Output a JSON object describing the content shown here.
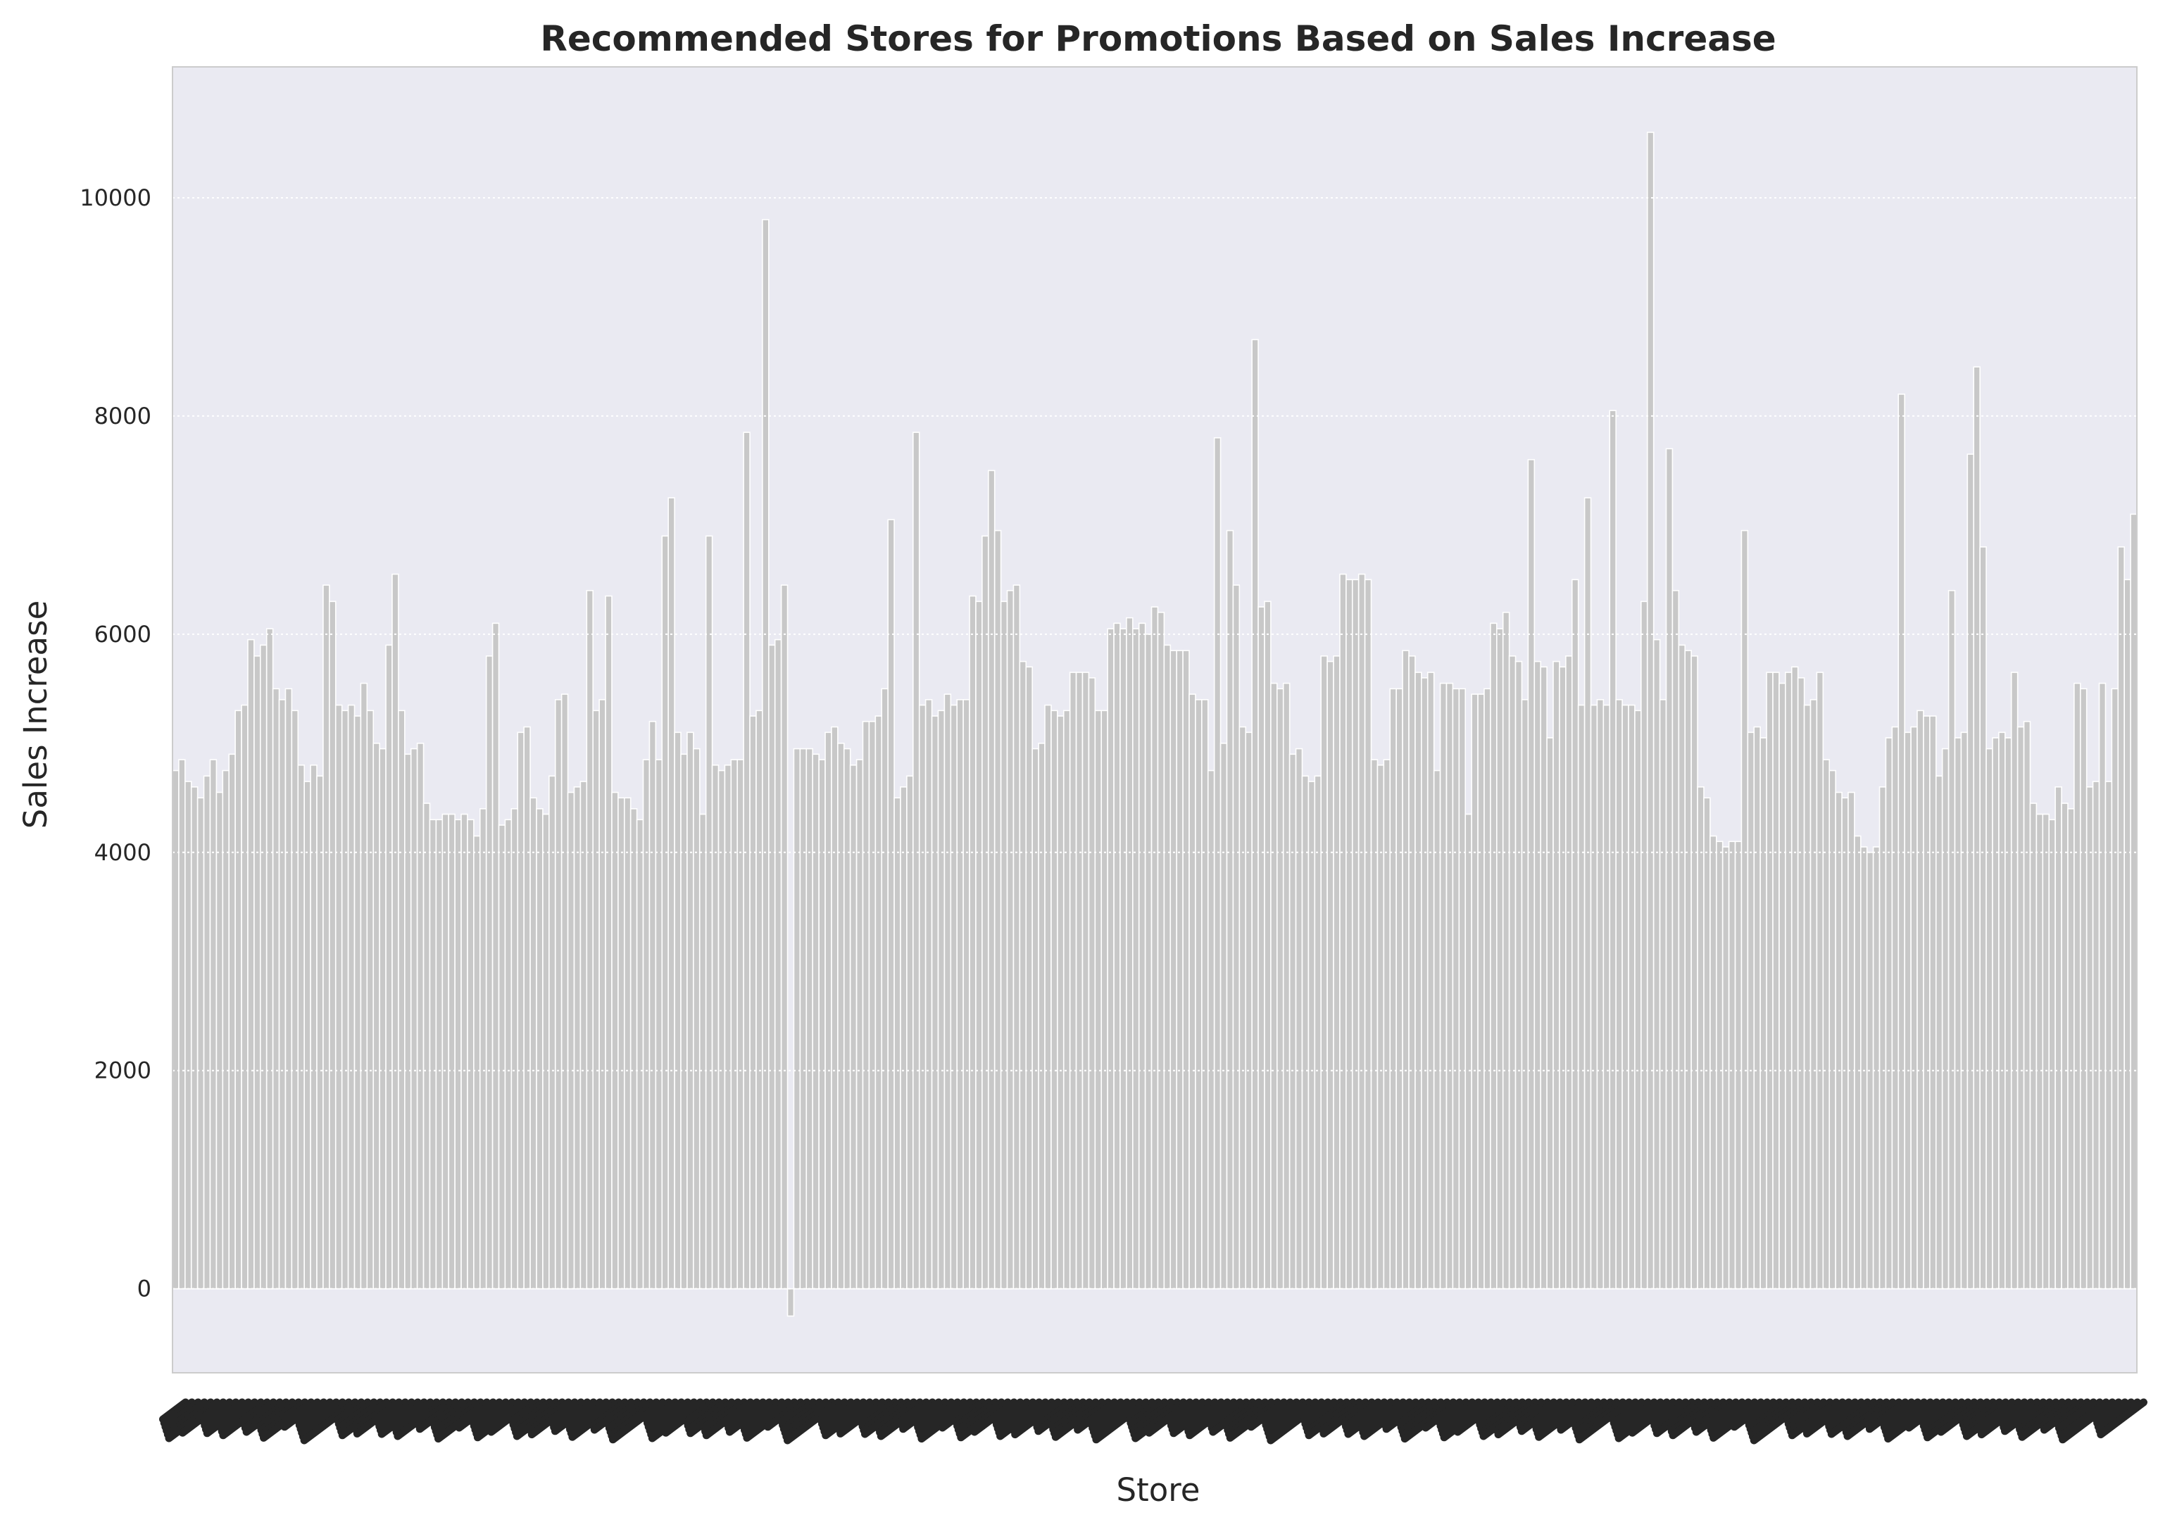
{
  "chart_data": {
    "type": "bar",
    "title": "Recommended Stores for Promotions Based on Sales Increase",
    "xlabel": "Store",
    "ylabel": "Sales Increase",
    "y_ticks": [
      0,
      2000,
      4000,
      6000,
      8000,
      10000
    ],
    "ylim": [
      -770,
      11200
    ],
    "grid": true,
    "legend": "none",
    "colors": {
      "plot_background": "#eaeaf2",
      "bar_fill": "#c8c8c8",
      "bar_edge": "#ffffff",
      "gridline": "#ffffff",
      "text": "#262626",
      "frame": "#cccccc"
    },
    "categories_note": "x tick labels are illegible (overlapping dark rotated labels)",
    "values": [
      4750,
      4850,
      4650,
      4600,
      4500,
      4700,
      4850,
      4550,
      4750,
      4900,
      5300,
      5350,
      5950,
      5800,
      5900,
      6050,
      5500,
      5400,
      5500,
      5300,
      4800,
      4650,
      4800,
      4700,
      6450,
      6300,
      5350,
      5300,
      5350,
      5250,
      5550,
      5300,
      5000,
      4950,
      5900,
      6550,
      5300,
      4900,
      4950,
      5000,
      4450,
      4300,
      4300,
      4350,
      4350,
      4300,
      4350,
      4300,
      4150,
      4400,
      5800,
      6100,
      4250,
      4300,
      4400,
      5100,
      5150,
      4500,
      4400,
      4350,
      4700,
      5400,
      5450,
      4550,
      4600,
      4650,
      6400,
      5300,
      5400,
      6350,
      4550,
      4500,
      4500,
      4400,
      4300,
      4850,
      5200,
      4850,
      6900,
      7250,
      5100,
      4900,
      5100,
      4950,
      4350,
      6900,
      4800,
      4750,
      4800,
      4850,
      4850,
      7850,
      5250,
      5300,
      9800,
      5900,
      5950,
      6450,
      -250,
      4950,
      4950,
      4950,
      4900,
      4850,
      5100,
      5150,
      5000,
      4950,
      4800,
      4850,
      5200,
      5200,
      5250,
      5500,
      7050,
      4500,
      4600,
      4700,
      7850,
      5350,
      5400,
      5250,
      5300,
      5450,
      5350,
      5400,
      5400,
      6350,
      6300,
      6900,
      7500,
      6950,
      6300,
      6400,
      6450,
      5750,
      5700,
      4950,
      5000,
      5350,
      5300,
      5250,
      5300,
      5650,
      5650,
      5650,
      5600,
      5300,
      5300,
      6050,
      6100,
      6050,
      6150,
      6050,
      6100,
      6000,
      6250,
      6200,
      5900,
      5850,
      5850,
      5850,
      5450,
      5400,
      5400,
      4750,
      7800,
      5000,
      6950,
      6450,
      5150,
      5100,
      8700,
      6250,
      6300,
      5550,
      5500,
      5550,
      4900,
      4950,
      4700,
      4650,
      4700,
      5800,
      5750,
      5800,
      6550,
      6500,
      6500,
      6550,
      6500,
      4850,
      4800,
      4850,
      5500,
      5500,
      5850,
      5800,
      5650,
      5600,
      5650,
      4750,
      5550,
      5550,
      5500,
      5500,
      4350,
      5450,
      5450,
      5500,
      6100,
      6050,
      6200,
      5800,
      5750,
      5400,
      7600,
      5750,
      5700,
      5050,
      5750,
      5700,
      5800,
      6500,
      5350,
      7250,
      5350,
      5400,
      5350,
      8050,
      5400,
      5350,
      5350,
      5300,
      6300,
      10600,
      5950,
      5400,
      7700,
      6400,
      5900,
      5850,
      5800,
      4600,
      4500,
      4150,
      4100,
      4050,
      4100,
      4100,
      6950,
      5100,
      5150,
      5050,
      5650,
      5650,
      5550,
      5650,
      5700,
      5600,
      5350,
      5400,
      5650,
      4850,
      4750,
      4550,
      4500,
      4550,
      4150,
      4050,
      4000,
      4050,
      4600,
      5050,
      5150,
      8200,
      5100,
      5150,
      5300,
      5250,
      5250,
      4700,
      4950,
      6400,
      5050,
      5100,
      7650,
      8450,
      6800,
      4950,
      5050,
      5100,
      5050,
      5650,
      5150,
      5200,
      4450,
      4350,
      4350,
      4300,
      4600,
      4450,
      4400,
      5550,
      5500,
      4600,
      4650,
      5550,
      4650,
      5500,
      6800,
      6500,
      7100
    ]
  }
}
